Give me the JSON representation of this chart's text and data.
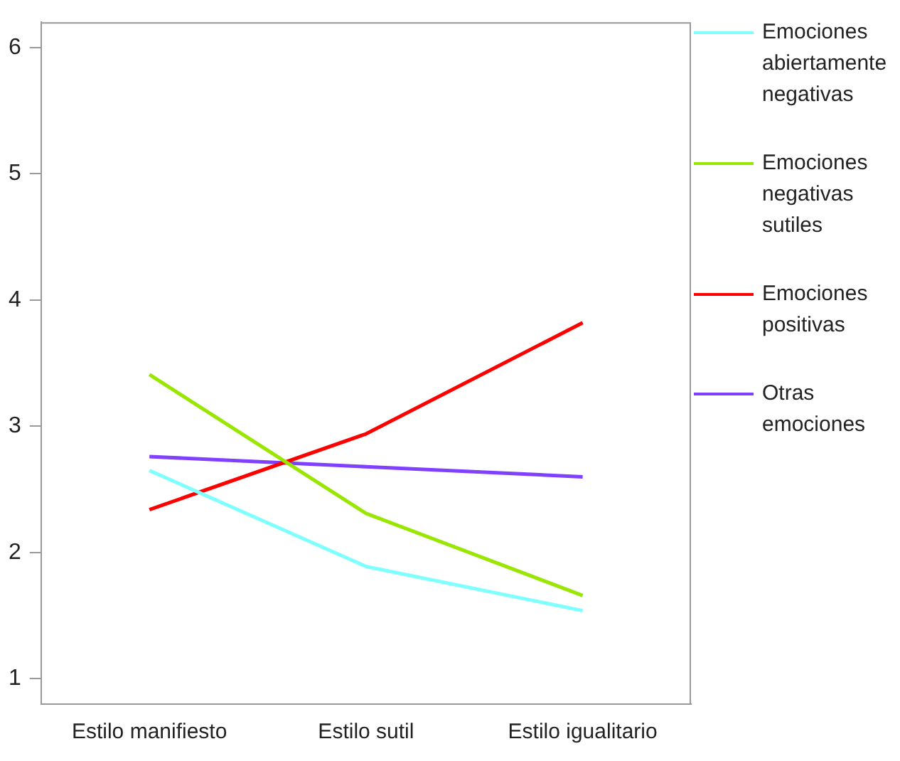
{
  "chart_data": {
    "type": "line",
    "categories": [
      "Estilo manifiesto",
      "Estilo sutil",
      "Estilo igualitario"
    ],
    "series": [
      {
        "name": "Emociones abiertamente negativas",
        "color": "#80ffff",
        "values": [
          2.65,
          1.89,
          1.54
        ]
      },
      {
        "name": "Emociones negativas sutiles",
        "color": "#99e600",
        "values": [
          3.41,
          2.31,
          1.66
        ]
      },
      {
        "name": "Emociones positivas",
        "color": "#ff0000",
        "values": [
          2.34,
          2.94,
          3.82
        ]
      },
      {
        "name": "Otras emociones",
        "color": "#8040ff",
        "values": [
          2.76,
          2.68,
          2.6
        ]
      }
    ],
    "ylim": [
      0.8,
      6.2
    ],
    "yticks": [
      1,
      2,
      3,
      4,
      5,
      6
    ],
    "grid": false,
    "legend": "right",
    "marker": "none",
    "line_style": "solid"
  }
}
